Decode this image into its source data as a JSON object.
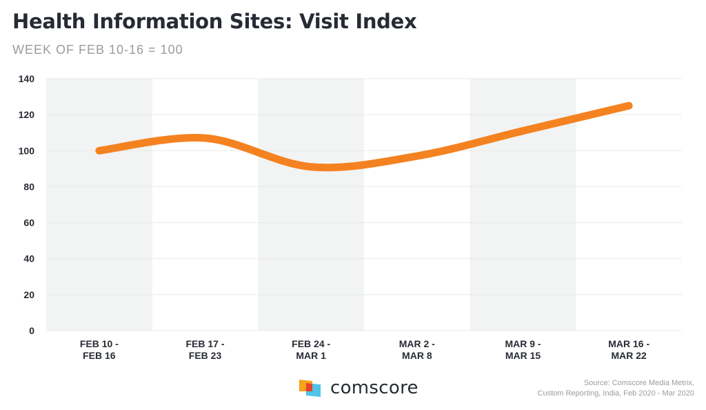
{
  "chart_data": {
    "type": "line",
    "title": "Health Information Sites: Visit Index",
    "subtitle": "WEEK OF FEB 10-16 = 100",
    "xlabel": "",
    "ylabel": "",
    "categories": [
      [
        "FEB 10 -",
        "FEB 16"
      ],
      [
        "FEB 17 -",
        "FEB 23"
      ],
      [
        "FEB 24 -",
        "MAR 1"
      ],
      [
        "MAR 2 -",
        "MAR 8"
      ],
      [
        "MAR 9 -",
        "MAR 15"
      ],
      [
        "MAR 16 -",
        "MAR 22"
      ]
    ],
    "series": [
      {
        "name": "Visit Index",
        "values": [
          100,
          107,
          91,
          97,
          111,
          125
        ],
        "color": "#f58220"
      }
    ],
    "ylim": [
      0,
      140
    ],
    "yticks": [
      0,
      20,
      40,
      60,
      80,
      100,
      120,
      140
    ],
    "grid": true,
    "band_color": "#f2f3f3",
    "grid_color": "#e8e9ea"
  },
  "logo": {
    "text": "comscore"
  },
  "source": {
    "line1": "Source: Comscore Media Metrix,",
    "line2": "Custom Reporting, India, Feb 2020 - Mar 2020"
  }
}
